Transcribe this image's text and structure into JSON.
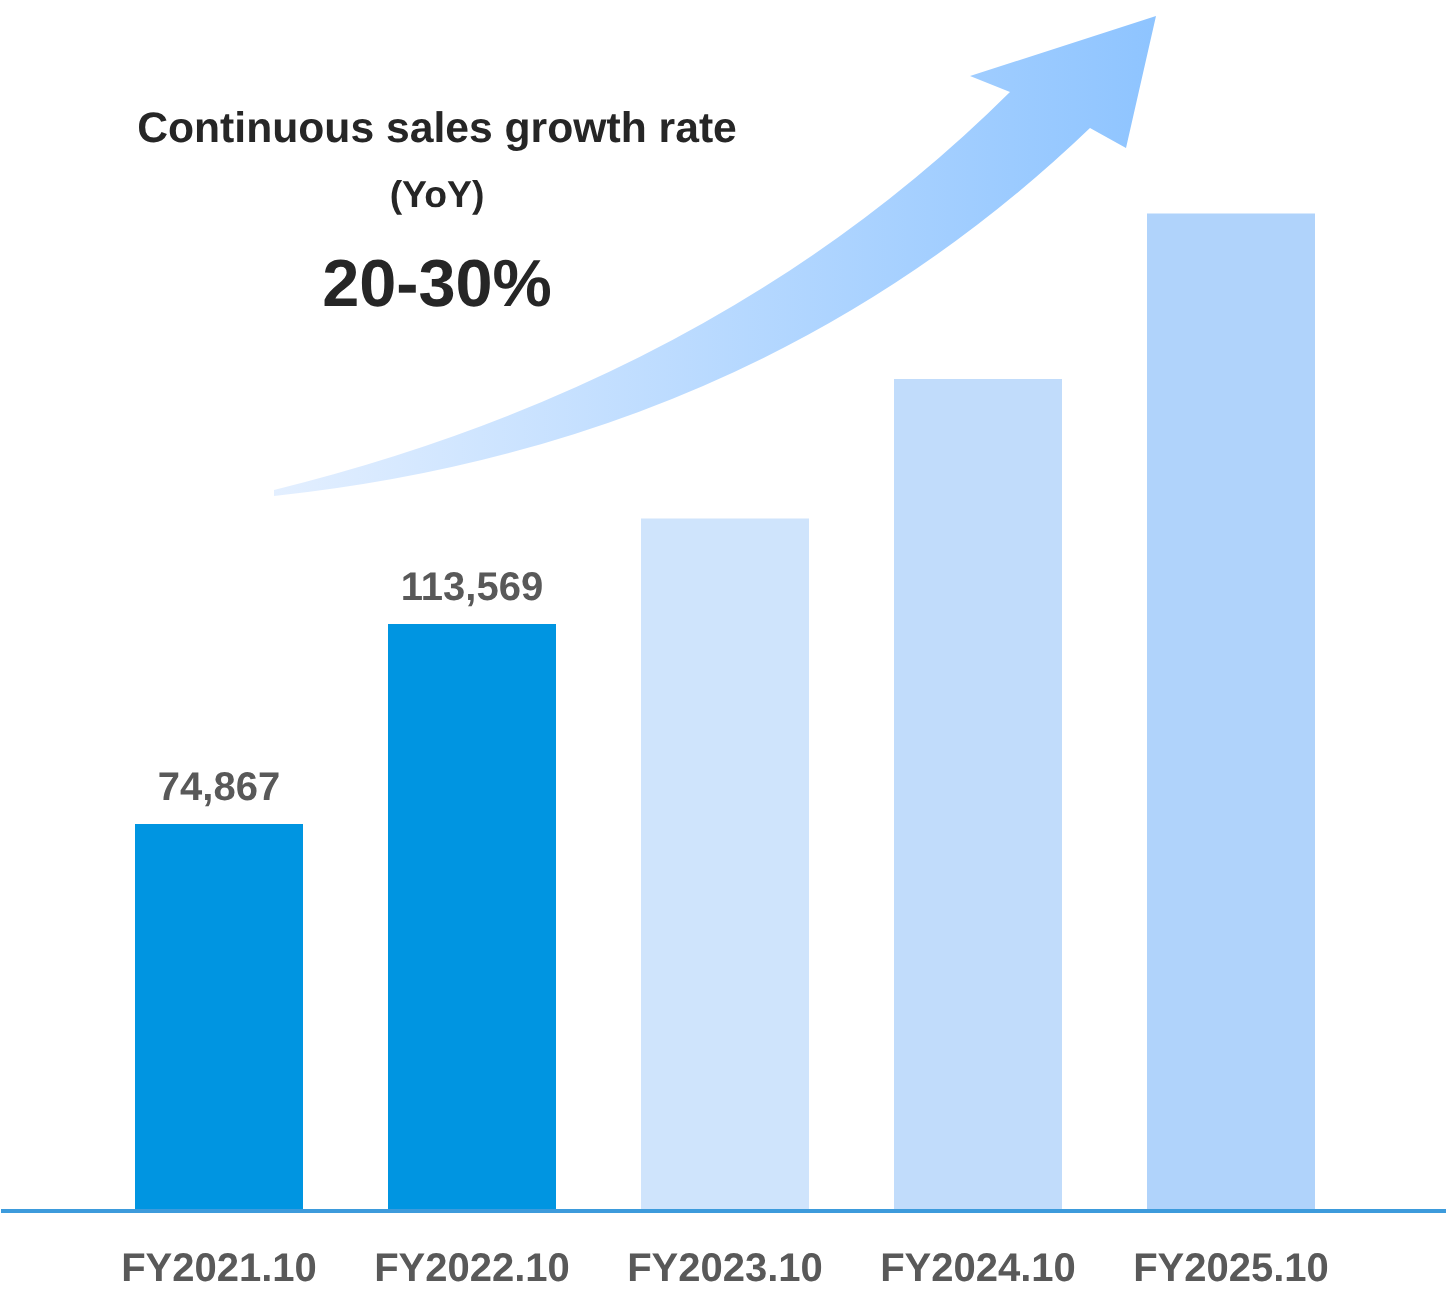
{
  "chart_data": {
    "type": "bar",
    "categories": [
      "FY2021.10",
      "FY2022.10",
      "FY2023.10",
      "FY2024.10",
      "FY2025.10"
    ],
    "values": [
      74867,
      113569,
      134000,
      161000,
      193000
    ],
    "colors": [
      "#0095e1",
      "#0095e1",
      "#cfe4fc",
      "#c1dcfb",
      "#b0d3fb"
    ],
    "value_labels": [
      "74,867",
      "113,569",
      null,
      null,
      null
    ],
    "annotations": [
      "Continuous sales growth rate",
      "(YoY)",
      "20-30%"
    ],
    "grid": false
  }
}
